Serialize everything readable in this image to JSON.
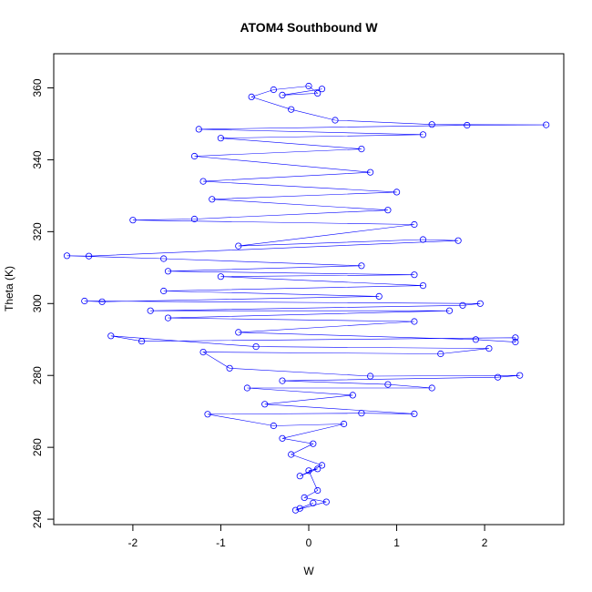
{
  "chart_data": {
    "type": "scatter",
    "title": "ATOM4 Southbound W",
    "xlabel": "W",
    "ylabel": "Theta (K)",
    "xlim": [
      -2.9,
      2.9
    ],
    "ylim": [
      238.5,
      369.5
    ],
    "xticks": [
      -2,
      -1,
      0,
      1,
      2
    ],
    "yticks": [
      240,
      260,
      280,
      300,
      320,
      340,
      360
    ],
    "grid": false,
    "legend": "none",
    "marker": "open-circle",
    "connected": true,
    "color": "#0000ff",
    "series": [
      {
        "points": [
          {
            "x": -0.1,
            "y": 243.0
          },
          {
            "x": 0.05,
            "y": 244.5
          },
          {
            "x": -0.15,
            "y": 242.5
          },
          {
            "x": 0.2,
            "y": 244.8
          },
          {
            "x": -0.05,
            "y": 246.0
          },
          {
            "x": 0.1,
            "y": 248.0
          },
          {
            "x": 0.0,
            "y": 253.5
          },
          {
            "x": 0.1,
            "y": 254.0
          },
          {
            "x": -0.1,
            "y": 252.0
          },
          {
            "x": 0.15,
            "y": 255.0
          },
          {
            "x": -0.2,
            "y": 258.0
          },
          {
            "x": 0.05,
            "y": 261.0
          },
          {
            "x": -0.3,
            "y": 262.5
          },
          {
            "x": 0.4,
            "y": 266.5
          },
          {
            "x": -0.4,
            "y": 266.0
          },
          {
            "x": -1.15,
            "y": 269.2
          },
          {
            "x": 0.6,
            "y": 269.5
          },
          {
            "x": 1.2,
            "y": 269.3
          },
          {
            "x": -0.5,
            "y": 272.0
          },
          {
            "x": 0.5,
            "y": 274.5
          },
          {
            "x": -0.7,
            "y": 276.5
          },
          {
            "x": 1.4,
            "y": 276.5
          },
          {
            "x": 0.9,
            "y": 277.5
          },
          {
            "x": -0.3,
            "y": 278.5
          },
          {
            "x": 2.15,
            "y": 279.5
          },
          {
            "x": 2.4,
            "y": 280.0
          },
          {
            "x": 0.7,
            "y": 279.8
          },
          {
            "x": -0.9,
            "y": 282.0
          },
          {
            "x": -1.2,
            "y": 286.5
          },
          {
            "x": 1.5,
            "y": 286.0
          },
          {
            "x": 2.05,
            "y": 287.5
          },
          {
            "x": -0.6,
            "y": 288.0
          },
          {
            "x": -2.25,
            "y": 291.0
          },
          {
            "x": -1.9,
            "y": 289.5
          },
          {
            "x": 2.35,
            "y": 290.5
          },
          {
            "x": 2.35,
            "y": 289.3
          },
          {
            "x": 1.9,
            "y": 290.0
          },
          {
            "x": -0.8,
            "y": 292.0
          },
          {
            "x": 1.2,
            "y": 295.0
          },
          {
            "x": -1.6,
            "y": 296.0
          },
          {
            "x": 1.6,
            "y": 298.0
          },
          {
            "x": -1.8,
            "y": 298.0
          },
          {
            "x": 1.75,
            "y": 299.5
          },
          {
            "x": 1.95,
            "y": 300.0
          },
          {
            "x": -2.55,
            "y": 300.7
          },
          {
            "x": -2.35,
            "y": 300.5
          },
          {
            "x": 0.8,
            "y": 302.0
          },
          {
            "x": -1.65,
            "y": 303.5
          },
          {
            "x": 1.3,
            "y": 305.0
          },
          {
            "x": -1.0,
            "y": 307.5
          },
          {
            "x": 1.2,
            "y": 308.0
          },
          {
            "x": -1.6,
            "y": 309.0
          },
          {
            "x": 0.6,
            "y": 310.5
          },
          {
            "x": -1.65,
            "y": 312.5
          },
          {
            "x": -2.75,
            "y": 313.3
          },
          {
            "x": -2.5,
            "y": 313.2
          },
          {
            "x": 1.7,
            "y": 317.5
          },
          {
            "x": 1.3,
            "y": 317.8
          },
          {
            "x": -0.8,
            "y": 316.0
          },
          {
            "x": 1.2,
            "y": 322.0
          },
          {
            "x": -2.0,
            "y": 323.2
          },
          {
            "x": -1.3,
            "y": 323.5
          },
          {
            "x": 0.9,
            "y": 326.0
          },
          {
            "x": -1.1,
            "y": 329.0
          },
          {
            "x": 1.0,
            "y": 331.0
          },
          {
            "x": -1.2,
            "y": 334.0
          },
          {
            "x": 0.7,
            "y": 336.5
          },
          {
            "x": -1.3,
            "y": 341.0
          },
          {
            "x": 0.6,
            "y": 343.0
          },
          {
            "x": -1.0,
            "y": 346.0
          },
          {
            "x": 1.3,
            "y": 347.0
          },
          {
            "x": -1.25,
            "y": 348.5
          },
          {
            "x": 1.8,
            "y": 349.6
          },
          {
            "x": 2.7,
            "y": 349.7
          },
          {
            "x": 1.4,
            "y": 349.8
          },
          {
            "x": 0.3,
            "y": 351.0
          },
          {
            "x": -0.2,
            "y": 354.0
          },
          {
            "x": -0.65,
            "y": 357.5
          },
          {
            "x": -0.4,
            "y": 359.5
          },
          {
            "x": 0.0,
            "y": 360.5
          },
          {
            "x": 0.1,
            "y": 358.5
          },
          {
            "x": -0.3,
            "y": 358.0
          },
          {
            "x": 0.15,
            "y": 359.7
          }
        ]
      }
    ]
  }
}
